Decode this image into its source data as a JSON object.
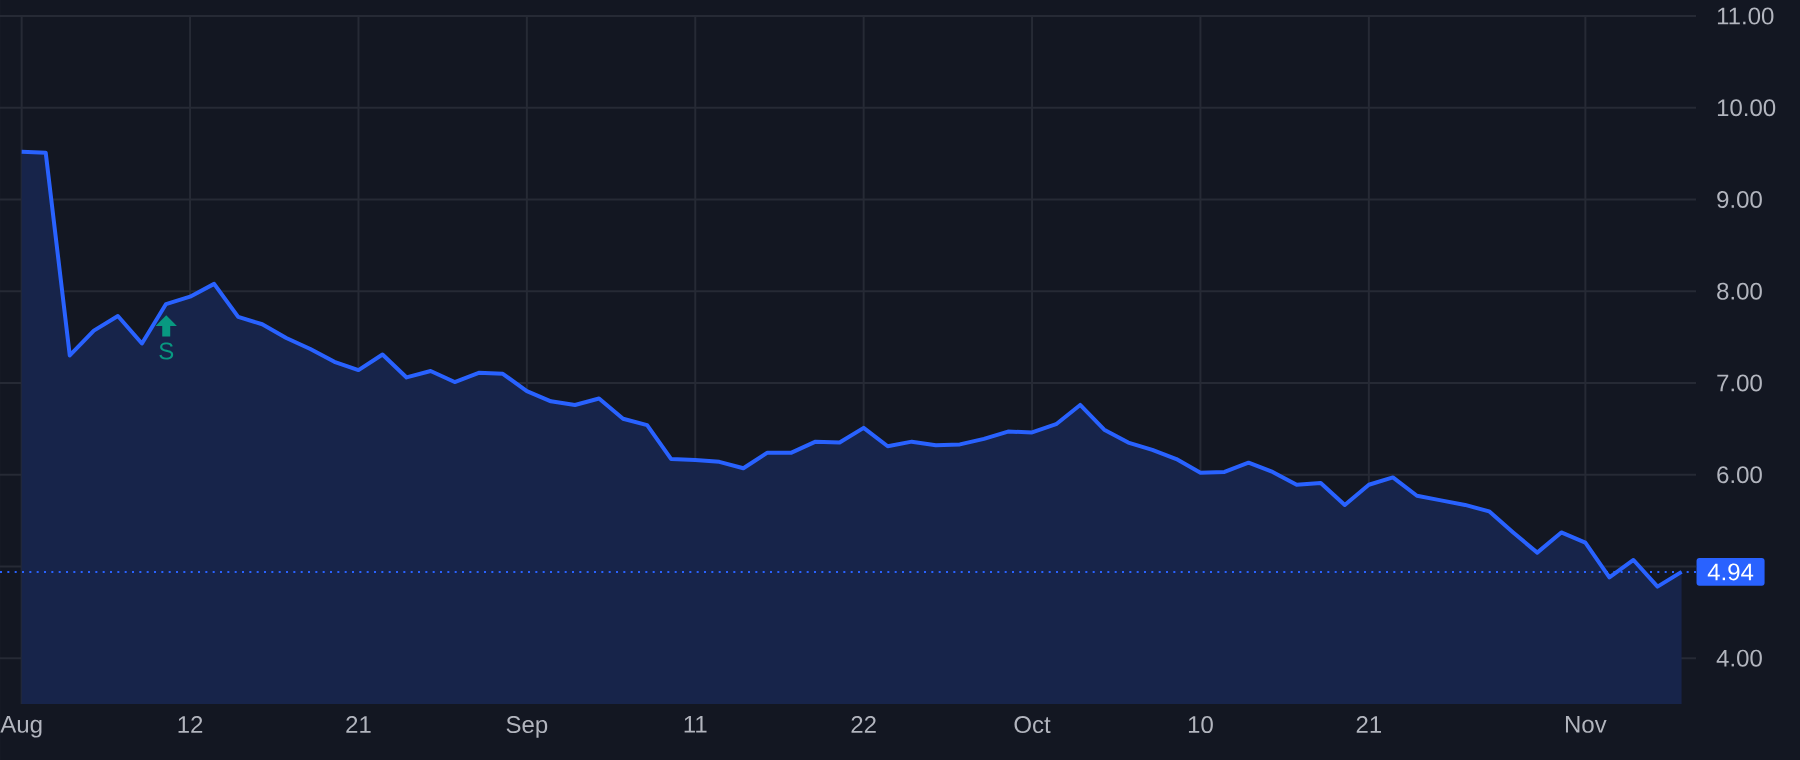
{
  "chart_data": {
    "type": "area",
    "categories": [
      "Aug",
      null,
      null,
      null,
      null,
      null,
      null,
      "12",
      null,
      null,
      null,
      null,
      null,
      null,
      "21",
      null,
      null,
      null,
      null,
      null,
      null,
      "Sep",
      null,
      null,
      null,
      null,
      null,
      null,
      "11",
      null,
      null,
      null,
      null,
      null,
      null,
      "22",
      null,
      null,
      null,
      null,
      null,
      null,
      "Oct",
      null,
      null,
      null,
      null,
      null,
      null,
      "10",
      null,
      null,
      null,
      null,
      null,
      null,
      "21",
      null,
      null,
      null,
      null,
      null,
      null,
      null,
      null,
      "Nov",
      null,
      null,
      null,
      null
    ],
    "series": [
      {
        "color": "#2962ff",
        "values": [
          9.52,
          9.51,
          7.3,
          7.57,
          7.73,
          7.43,
          7.86,
          7.94,
          8.08,
          7.72,
          7.64,
          7.49,
          7.37,
          7.23,
          7.14,
          7.31,
          7.06,
          7.13,
          7.01,
          7.11,
          7.1,
          6.91,
          6.8,
          6.76,
          6.83,
          6.61,
          6.54,
          6.17,
          6.16,
          6.14,
          6.07,
          6.24,
          6.24,
          6.36,
          6.35,
          6.51,
          6.31,
          6.36,
          6.32,
          6.33,
          6.39,
          6.47,
          6.46,
          6.55,
          6.76,
          6.49,
          6.35,
          6.27,
          6.17,
          6.02,
          6.03,
          6.13,
          6.03,
          5.89,
          5.91,
          5.67,
          5.89,
          5.97,
          5.77,
          5.72,
          5.67,
          5.6,
          5.37,
          5.15,
          5.37,
          5.26,
          4.88,
          5.07,
          4.78,
          4.94
        ]
      }
    ],
    "ylim": [
      3.5,
      11.0
    ],
    "yticks": [
      {
        "value": 4,
        "label": "4.00"
      },
      {
        "value": 5,
        "label": null
      },
      {
        "value": 6,
        "label": "6.00"
      },
      {
        "value": 7,
        "label": "7.00"
      },
      {
        "value": 8,
        "label": "8.00"
      },
      {
        "value": 9,
        "label": "9.00"
      },
      {
        "value": 10,
        "label": "10.00"
      },
      {
        "value": 11,
        "label": "11.00"
      }
    ],
    "ref_lines": [
      {
        "axis": "y",
        "value": 4.94,
        "label": "4.94",
        "color": "#2962ff",
        "line_style": "dotted"
      }
    ],
    "annotations": [
      "S"
    ],
    "grid": true,
    "legend": false,
    "marker": "none",
    "line_style": "solid"
  }
}
